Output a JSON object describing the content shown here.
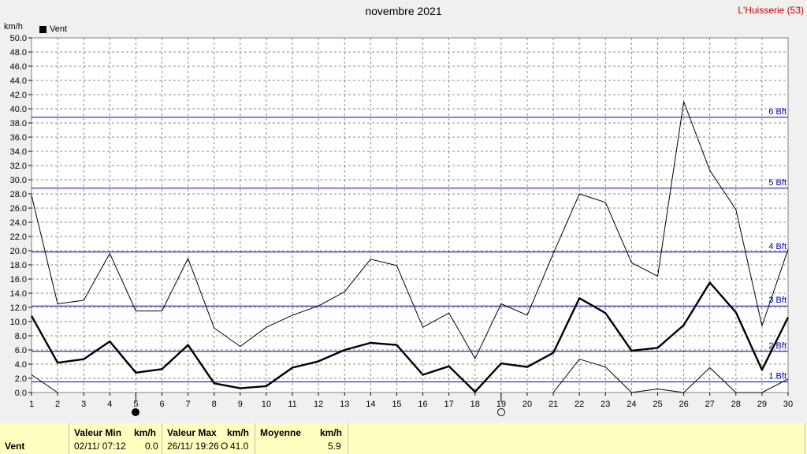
{
  "title": "novembre 2021",
  "station": "L'Huisserie (53)",
  "unit_label": "km/h",
  "legend": {
    "label": "Vent"
  },
  "bft_labels": [
    "1 Bft",
    "2 Bft",
    "3 Bft",
    "4 Bft",
    "5 Bft",
    "6 Bft"
  ],
  "bft_values": [
    1.5,
    5.8,
    12.2,
    19.8,
    28.8,
    38.8
  ],
  "moon_phases": [
    {
      "day": 5,
      "phase": "full"
    },
    {
      "day": 19,
      "phase": "new"
    }
  ],
  "colors": {
    "plot_bg": "#ffffff",
    "bft_line": "#0000aa",
    "bft_text": "#0000aa",
    "footer_bg": "#ffffc0",
    "station": "#cc0000"
  },
  "footer": {
    "row_label": "Vent",
    "min_header": "Valeur Min",
    "min_unit": "km/h",
    "min_date": "02/11/ 07:12",
    "min_value": "0.0",
    "max_header": "Valeur Max",
    "max_unit": "km/h",
    "max_date": "26/11/ 19:26",
    "max_dir": "O",
    "max_value": "41.0",
    "avg_header": "Moyenne",
    "avg_unit": "km/h",
    "avg_value": "5.9"
  },
  "chart_data": {
    "type": "line",
    "x": [
      1,
      2,
      3,
      4,
      5,
      6,
      7,
      8,
      9,
      10,
      11,
      12,
      13,
      14,
      15,
      16,
      17,
      18,
      19,
      20,
      21,
      22,
      23,
      24,
      25,
      26,
      27,
      28,
      29,
      30
    ],
    "xlim": [
      1,
      30
    ],
    "ylim": [
      0,
      50
    ],
    "ytick_step": 2,
    "grid": true,
    "series": [
      {
        "name": "Vent",
        "style": "mean",
        "values": [
          10.8,
          4.2,
          4.7,
          7.2,
          2.8,
          3.3,
          6.7,
          1.3,
          0.6,
          0.9,
          3.5,
          4.4,
          6.0,
          7.0,
          6.7,
          2.5,
          3.7,
          0.1,
          4.1,
          3.6,
          5.6,
          13.3,
          11.2,
          5.9,
          6.3,
          9.5,
          15.5,
          11.3,
          3.2,
          10.6
        ]
      },
      {
        "style": "max",
        "values": [
          27.8,
          12.5,
          13.0,
          19.6,
          11.5,
          11.5,
          18.9,
          9.1,
          6.5,
          9.2,
          10.9,
          12.2,
          14.2,
          18.8,
          17.9,
          9.2,
          11.2,
          4.8,
          12.5,
          10.9,
          19.6,
          28.0,
          26.8,
          18.3,
          16.4,
          41.0,
          31.3,
          25.8,
          9.4,
          20.2
        ]
      },
      {
        "style": "min",
        "values": [
          2.5,
          0.0,
          null,
          null,
          null,
          null,
          null,
          null,
          null,
          null,
          null,
          null,
          null,
          null,
          null,
          null,
          null,
          null,
          null,
          null,
          0.0,
          4.7,
          3.6,
          0.0,
          0.5,
          0.0,
          3.5,
          0.0,
          0.0,
          1.9
        ]
      }
    ]
  }
}
